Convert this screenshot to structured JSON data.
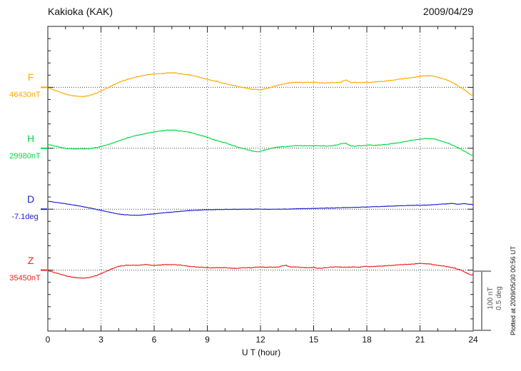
{
  "header": {
    "title": "Kakioka (KAK)",
    "date": "2009/04/29"
  },
  "footer": {
    "xlabel": "U T (hour)",
    "plotted_at": "Plotted at 2009/05/30 00:56 UT"
  },
  "scale_bar": {
    "line1": "100 nT",
    "line2": "0.5 deg"
  },
  "axis": {
    "x_tick_labels": [
      "0",
      "3",
      "6",
      "9",
      "12",
      "15",
      "18",
      "21",
      "24"
    ]
  },
  "chart_data": {
    "type": "line",
    "title": "Kakioka (KAK)",
    "date": "2009/04/29",
    "xlabel": "U T (hour)",
    "x_range": [
      0,
      24
    ],
    "x_ticks": [
      0,
      3,
      6,
      9,
      12,
      15,
      18,
      21,
      24
    ],
    "grid": "dotted vertical every 3 hours; dotted horizontal baseline per trace",
    "legend_position": "left of axis",
    "scale": {
      "bar_nT": 100,
      "bar_deg": 0.5
    },
    "series": [
      {
        "name": "F",
        "unit": "nT",
        "baseline": 46430,
        "baseline_label": "46430nT",
        "color": "#ffaa00",
        "points": [
          [
            0,
            46429
          ],
          [
            0.5,
            46424
          ],
          [
            1,
            46419
          ],
          [
            1.5,
            46416
          ],
          [
            2,
            46415
          ],
          [
            2.5,
            46418
          ],
          [
            3,
            46424
          ],
          [
            3.5,
            46431
          ],
          [
            4,
            46438
          ],
          [
            4.5,
            46443
          ],
          [
            5,
            46447
          ],
          [
            5.5,
            46450
          ],
          [
            6,
            46452
          ],
          [
            6.5,
            46453
          ],
          [
            7,
            46454
          ],
          [
            7.5,
            46452
          ],
          [
            8,
            46450
          ],
          [
            8.5,
            46447
          ],
          [
            9,
            46443
          ],
          [
            9.5,
            46440
          ],
          [
            10,
            46436
          ],
          [
            10.5,
            46433
          ],
          [
            11,
            46430
          ],
          [
            11.5,
            46427
          ],
          [
            12,
            46426
          ],
          [
            12.3,
            46428
          ],
          [
            12.7,
            46431
          ],
          [
            13.2,
            46435
          ],
          [
            13.6,
            46437
          ],
          [
            14,
            46438
          ],
          [
            14.5,
            46438
          ],
          [
            15,
            46438
          ],
          [
            15.5,
            46437
          ],
          [
            16,
            46438
          ],
          [
            16.5,
            46438
          ],
          [
            16.8,
            46442
          ],
          [
            17.1,
            46438
          ],
          [
            17.5,
            46438
          ],
          [
            18,
            46438
          ],
          [
            18.5,
            46439
          ],
          [
            19,
            46440
          ],
          [
            19.5,
            46442
          ],
          [
            20,
            46444
          ],
          [
            20.5,
            46446
          ],
          [
            21,
            46448
          ],
          [
            21.4,
            46449
          ],
          [
            21.8,
            46448
          ],
          [
            22.2,
            46445
          ],
          [
            22.6,
            46441
          ],
          [
            23,
            46435
          ],
          [
            23.4,
            46428
          ],
          [
            23.7,
            46422
          ],
          [
            24,
            46416
          ]
        ]
      },
      {
        "name": "H",
        "unit": "nT",
        "baseline": 29980,
        "baseline_label": "29980nT",
        "color": "#00dd44",
        "points": [
          [
            0,
            29986
          ],
          [
            0.5,
            29983
          ],
          [
            1,
            29980
          ],
          [
            1.5,
            29979
          ],
          [
            2,
            29979
          ],
          [
            2.5,
            29980
          ],
          [
            3,
            29983
          ],
          [
            3.5,
            29987
          ],
          [
            4,
            29992
          ],
          [
            4.5,
            29997
          ],
          [
            5,
            30001
          ],
          [
            5.5,
            30004
          ],
          [
            6,
            30007
          ],
          [
            6.5,
            30009
          ],
          [
            7,
            30010
          ],
          [
            7.5,
            30008
          ],
          [
            8,
            30006
          ],
          [
            8.5,
            30002
          ],
          [
            9,
            29998
          ],
          [
            9.5,
            29993
          ],
          [
            10,
            29989
          ],
          [
            10.5,
            29984
          ],
          [
            11,
            29980
          ],
          [
            11.5,
            29976
          ],
          [
            11.8,
            29974
          ],
          [
            12.2,
            29977
          ],
          [
            12.6,
            29980
          ],
          [
            13,
            29982
          ],
          [
            13.5,
            29983
          ],
          [
            14,
            29984
          ],
          [
            15,
            29984
          ],
          [
            16,
            29984
          ],
          [
            16.8,
            29988
          ],
          [
            17.1,
            29984
          ],
          [
            17.5,
            29984
          ],
          [
            18,
            29985
          ],
          [
            18.5,
            29985
          ],
          [
            19,
            29986
          ],
          [
            19.5,
            29988
          ],
          [
            20,
            29990
          ],
          [
            20.5,
            29993
          ],
          [
            21,
            29995
          ],
          [
            21.4,
            29996
          ],
          [
            21.8,
            29995
          ],
          [
            22.2,
            29992
          ],
          [
            22.6,
            29988
          ],
          [
            23,
            29983
          ],
          [
            23.4,
            29977
          ],
          [
            23.7,
            29972
          ],
          [
            24,
            29968
          ]
        ]
      },
      {
        "name": "D",
        "unit": "deg",
        "baseline": -7.1,
        "baseline_label": "-7.1deg",
        "color": "#2222cc",
        "points": [
          [
            0,
            -7.035
          ],
          [
            0.5,
            -7.045
          ],
          [
            1,
            -7.055
          ],
          [
            1.5,
            -7.067
          ],
          [
            2,
            -7.08
          ],
          [
            2.5,
            -7.094
          ],
          [
            3,
            -7.11
          ],
          [
            3.5,
            -7.125
          ],
          [
            4,
            -7.14
          ],
          [
            4.5,
            -7.147
          ],
          [
            5,
            -7.15
          ],
          [
            5.5,
            -7.145
          ],
          [
            6,
            -7.138
          ],
          [
            6.5,
            -7.13
          ],
          [
            7,
            -7.124
          ],
          [
            7.5,
            -7.118
          ],
          [
            8,
            -7.112
          ],
          [
            8.5,
            -7.108
          ],
          [
            9,
            -7.105
          ],
          [
            9.5,
            -7.103
          ],
          [
            10,
            -7.102
          ],
          [
            10.5,
            -7.101
          ],
          [
            11,
            -7.1
          ],
          [
            12,
            -7.1
          ],
          [
            13,
            -7.1
          ],
          [
            14,
            -7.097
          ],
          [
            15,
            -7.094
          ],
          [
            16,
            -7.09
          ],
          [
            17,
            -7.086
          ],
          [
            18,
            -7.082
          ],
          [
            19,
            -7.077
          ],
          [
            20,
            -7.071
          ],
          [
            21,
            -7.067
          ],
          [
            21.5,
            -7.065
          ],
          [
            22,
            -7.061
          ],
          [
            22.5,
            -7.056
          ],
          [
            22.8,
            -7.053
          ],
          [
            23.1,
            -7.059
          ],
          [
            23.5,
            -7.055
          ],
          [
            24,
            -7.063
          ]
        ]
      },
      {
        "name": "Z",
        "unit": "nT",
        "baseline": 35450,
        "baseline_label": "35450nT",
        "color": "#ee2222",
        "points": [
          [
            0,
            35449
          ],
          [
            0.5,
            35445
          ],
          [
            1,
            35441
          ],
          [
            1.5,
            35438
          ],
          [
            2,
            35437
          ],
          [
            2.5,
            35439
          ],
          [
            3,
            35444
          ],
          [
            3.3,
            35448
          ],
          [
            3.6,
            35452
          ],
          [
            4,
            35456
          ],
          [
            4.5,
            35458
          ],
          [
            5,
            35458
          ],
          [
            5.5,
            35459
          ],
          [
            6,
            35458
          ],
          [
            6.5,
            35459
          ],
          [
            7,
            35459
          ],
          [
            7.5,
            35458
          ],
          [
            8,
            35456
          ],
          [
            8.5,
            35455
          ],
          [
            9,
            35454
          ],
          [
            9.5,
            35454
          ],
          [
            10,
            35454
          ],
          [
            10.5,
            35453
          ],
          [
            11,
            35454
          ],
          [
            11.5,
            35454
          ],
          [
            12,
            35455
          ],
          [
            12.5,
            35455
          ],
          [
            13,
            35455
          ],
          [
            13.4,
            35458
          ],
          [
            13.7,
            35455
          ],
          [
            14,
            35455
          ],
          [
            14.5,
            35454
          ],
          [
            15,
            35454
          ],
          [
            15.3,
            35453
          ],
          [
            16,
            35455
          ],
          [
            16.5,
            35455
          ],
          [
            17,
            35455
          ],
          [
            17.5,
            35455
          ],
          [
            18,
            35456
          ],
          [
            18.5,
            35456
          ],
          [
            19,
            35457
          ],
          [
            19.5,
            35458
          ],
          [
            20,
            35459
          ],
          [
            20.5,
            35460
          ],
          [
            21,
            35461
          ],
          [
            21.5,
            35460
          ],
          [
            22,
            35458
          ],
          [
            22.5,
            35456
          ],
          [
            23,
            35453
          ],
          [
            23.3,
            35450
          ],
          [
            23.6,
            35446
          ],
          [
            23.9,
            35442
          ],
          [
            24,
            35444
          ]
        ]
      }
    ]
  }
}
